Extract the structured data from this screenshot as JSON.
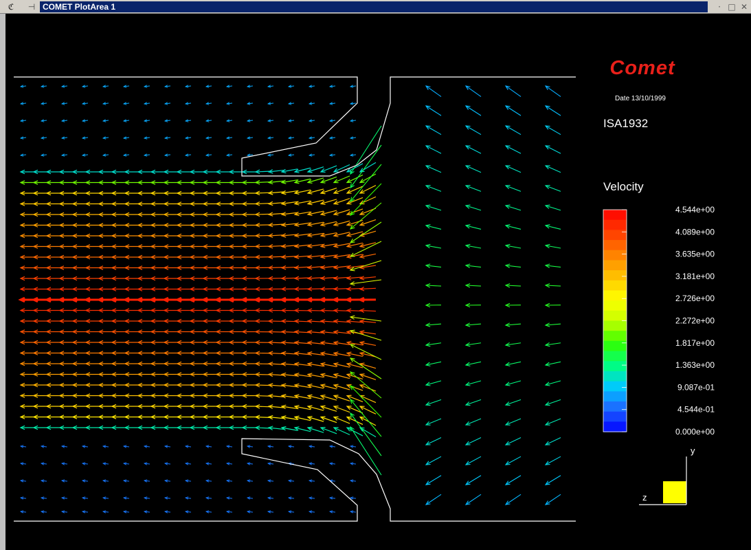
{
  "window": {
    "title": "COMET PlotArea 1",
    "icons": {
      "system": "comet-app-icon",
      "pin": "pin-icon"
    },
    "buttons": {
      "minimize": "·",
      "maximize": "□",
      "close": "✕"
    }
  },
  "plot": {
    "logo": "Comet",
    "date": "Date 13/10/1999",
    "case_name": "ISA1932",
    "legend_title": "Velocity",
    "legend_labels": [
      "4.544e+00",
      "4.089e+00",
      "3.635e+00",
      "3.181e+00",
      "2.726e+00",
      "2.272e+00",
      "1.817e+00",
      "1.363e+00",
      "9.087e-01",
      "4.544e-01",
      "0.000e+00"
    ],
    "axes": {
      "y": "y",
      "z": "z"
    },
    "colors": {
      "logo": "#e8201a",
      "geometry": "#ffffff",
      "axis_box": "#ffff00",
      "background": "#000000"
    },
    "colormap": [
      "#0000ff",
      "#1e64ff",
      "#00c8ff",
      "#00ff80",
      "#32ff00",
      "#c8ff00",
      "#ffff00",
      "#ffc000",
      "#ff8000",
      "#ff3c00",
      "#ff0000"
    ]
  }
}
